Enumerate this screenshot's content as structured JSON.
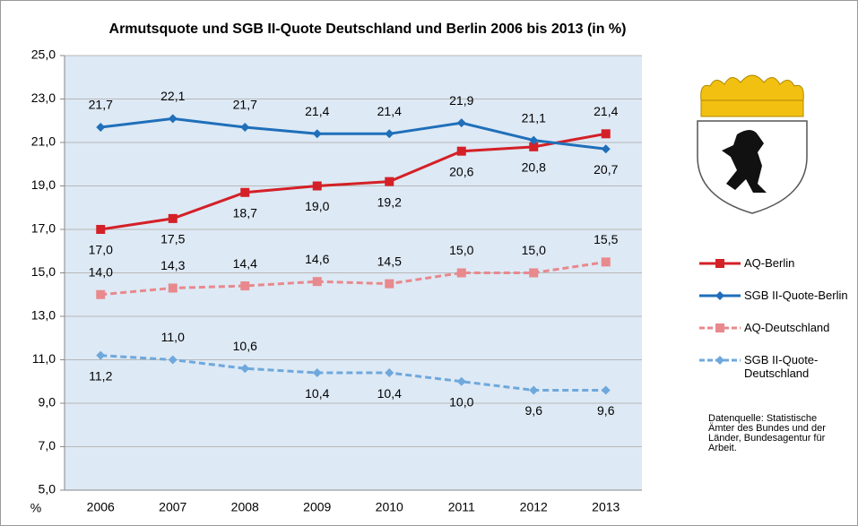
{
  "chart_data": {
    "type": "line",
    "title": "Armutsquote und SGB II-Quote Deutschland und Berlin 2006 bis 2013 (in %)",
    "y_label": "%",
    "note": "Datenquelle: Statistische Ämter des Bundes und der Länder, Bundesagentur für Arbeit.",
    "categories": [
      "2006",
      "2007",
      "2008",
      "2009",
      "2010",
      "2011",
      "2012",
      "2013"
    ],
    "ylim": [
      5,
      25
    ],
    "yticks": [
      {
        "value": 5,
        "label": "5,0"
      },
      {
        "value": 7,
        "label": "7,0"
      },
      {
        "value": 9,
        "label": "9,0"
      },
      {
        "value": 11,
        "label": "11,0"
      },
      {
        "value": 13,
        "label": "13,0"
      },
      {
        "value": 15,
        "label": "15,0"
      },
      {
        "value": 17,
        "label": "17,0"
      },
      {
        "value": 19,
        "label": "19,0"
      },
      {
        "value": 21,
        "label": "21,0"
      },
      {
        "value": 23,
        "label": "23,0"
      },
      {
        "value": 25,
        "label": "25,0"
      }
    ],
    "grid": true,
    "series": [
      {
        "name": "AQ-Berlin",
        "color": "#d42027",
        "dashed": false,
        "marker": "square",
        "values": [
          17.0,
          17.5,
          18.7,
          19.0,
          19.2,
          20.6,
          20.8,
          21.4
        ],
        "value_labels": [
          "17,0",
          "17,5",
          "18,7",
          "19,0",
          "19,2",
          "20,6",
          "20,8",
          "21,4"
        ]
      },
      {
        "name": "SGB II-Quote-Berlin",
        "color": "#1f6fba",
        "dashed": false,
        "marker": "diamond",
        "values": [
          21.7,
          22.1,
          21.7,
          21.4,
          21.4,
          21.9,
          21.1,
          20.7
        ],
        "value_labels": [
          "21,7",
          "22,1",
          "21,7",
          "21,4",
          "21,4",
          "21,9",
          "21,1",
          "20,7"
        ]
      },
      {
        "name": "AQ-Deutschland",
        "color": "#e8898d",
        "dashed": true,
        "marker": "square",
        "values": [
          14.0,
          14.3,
          14.4,
          14.6,
          14.5,
          15.0,
          15.0,
          15.5
        ],
        "value_labels": [
          "14,0",
          "14,3",
          "14,4",
          "14,6",
          "14,5",
          "15,0",
          "15,0",
          "15,5"
        ]
      },
      {
        "name": "SGB II-Quote-Deutschland",
        "color": "#6fa8dc",
        "dashed": true,
        "marker": "diamond",
        "values": [
          11.2,
          11.0,
          10.6,
          10.4,
          10.4,
          10.0,
          9.6,
          9.6
        ],
        "value_labels": [
          "11,2",
          "11,0",
          "10,6",
          "10,4",
          "10,4",
          "10,0",
          "9,6",
          "9,6"
        ]
      }
    ]
  }
}
